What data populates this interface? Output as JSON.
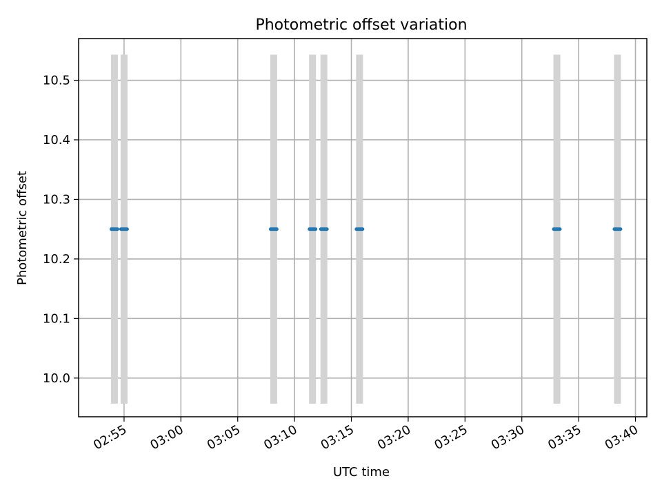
{
  "chart_data": {
    "type": "scatter",
    "title": "Photometric offset variation",
    "xlabel": "UTC time",
    "ylabel": "Photometric offset",
    "grid": true,
    "x_axis_type": "time",
    "xlim": [
      "02:51:00",
      "03:41:00"
    ],
    "ylim": [
      9.935,
      10.57
    ],
    "x_ticks": [
      "02:55",
      "03:00",
      "03:05",
      "03:10",
      "03:15",
      "03:20",
      "03:25",
      "03:30",
      "03:35",
      "03:40"
    ],
    "y_ticks": [
      10.0,
      10.1,
      10.2,
      10.3,
      10.4,
      10.5
    ],
    "y_tick_labels": [
      "10.0",
      "10.1",
      "10.2",
      "10.3",
      "10.4",
      "10.5"
    ],
    "series": [
      {
        "color": "#1f77b4",
        "marker": "dot",
        "errorbar_color": "#d3d3d3",
        "points": [
          {
            "x": "02:54:09",
            "y": 10.25,
            "yerr": 0.293
          },
          {
            "x": "02:55:00",
            "y": 10.25,
            "yerr": 0.293
          },
          {
            "x": "03:08:10",
            "y": 10.25,
            "yerr": 0.293
          },
          {
            "x": "03:11:35",
            "y": 10.25,
            "yerr": 0.293
          },
          {
            "x": "03:12:35",
            "y": 10.25,
            "yerr": 0.293
          },
          {
            "x": "03:15:43",
            "y": 10.25,
            "yerr": 0.293
          },
          {
            "x": "03:33:05",
            "y": 10.25,
            "yerr": 0.293
          },
          {
            "x": "03:38:25",
            "y": 10.25,
            "yerr": 0.293
          }
        ]
      }
    ]
  }
}
